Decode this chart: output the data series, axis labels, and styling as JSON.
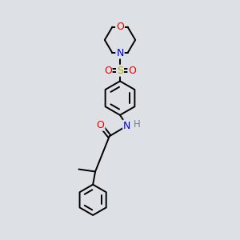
{
  "background_color": "#e8eaec",
  "atom_colors": {
    "C": "#000000",
    "N": "#0000ee",
    "O": "#ee0000",
    "S": "#bbaa00",
    "H": "#708090"
  },
  "bond_color": "#000000",
  "bond_width": 1.4,
  "fig_bg": "#dde0e4"
}
